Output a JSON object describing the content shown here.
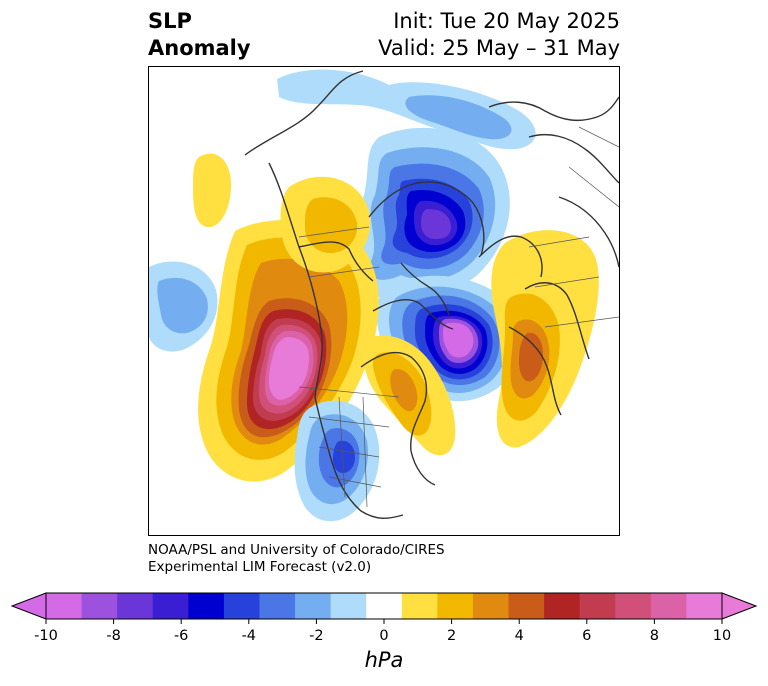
{
  "title": {
    "left_line1": "SLP",
    "left_line2": "Anomaly",
    "init": "Init: Tue 20 May 2025",
    "valid": "Valid: 25 May – 31 May"
  },
  "credit": {
    "line1": "NOAA/PSL and University of Colorado/CIRES",
    "line2": "Experimental LIM Forecast (v2.0)"
  },
  "colorbar": {
    "unit": "hPa",
    "tick_labels": [
      "-10",
      "-8",
      "-6",
      "-4",
      "-2",
      "0",
      "2",
      "4",
      "6",
      "8",
      "10"
    ],
    "levels": [
      -10,
      -9,
      -8,
      -7,
      -6,
      -5,
      -4,
      -3,
      -2,
      -1,
      1,
      2,
      3,
      4,
      5,
      6,
      7,
      8,
      9,
      10
    ],
    "colors": [
      "#d46ae6",
      "#9c52de",
      "#6a36d8",
      "#3a1ed4",
      "#0000d0",
      "#2642da",
      "#4a76e6",
      "#74aef0",
      "#aedcfa",
      "#ffffff",
      "#ffe040",
      "#f2b800",
      "#e08a10",
      "#c85c18",
      "#b02424",
      "#c23c50",
      "#d0507a",
      "#dc62a8",
      "#e87ad8"
    ],
    "extend": "both"
  },
  "map": {
    "projection": "polar stereographic (northern hemisphere)",
    "field": "sea level pressure anomaly",
    "anomaly_centers": [
      {
        "region": "North Pacific",
        "sign": "positive",
        "peak_hpa": 10
      },
      {
        "region": "Central Arctic",
        "sign": "negative",
        "peak_hpa": -9
      },
      {
        "region": "Greenland / Iceland",
        "sign": "negative",
        "peak_hpa": -10
      },
      {
        "region": "Western Europe / North Atlantic",
        "sign": "positive",
        "peak_hpa": 5
      },
      {
        "region": "Central United States",
        "sign": "negative",
        "peak_hpa": -5
      },
      {
        "region": "Hudson Bay / Eastern Canada",
        "sign": "positive",
        "peak_hpa": 3
      },
      {
        "region": "East Asia",
        "sign": "negative",
        "peak_hpa": -2
      }
    ]
  }
}
